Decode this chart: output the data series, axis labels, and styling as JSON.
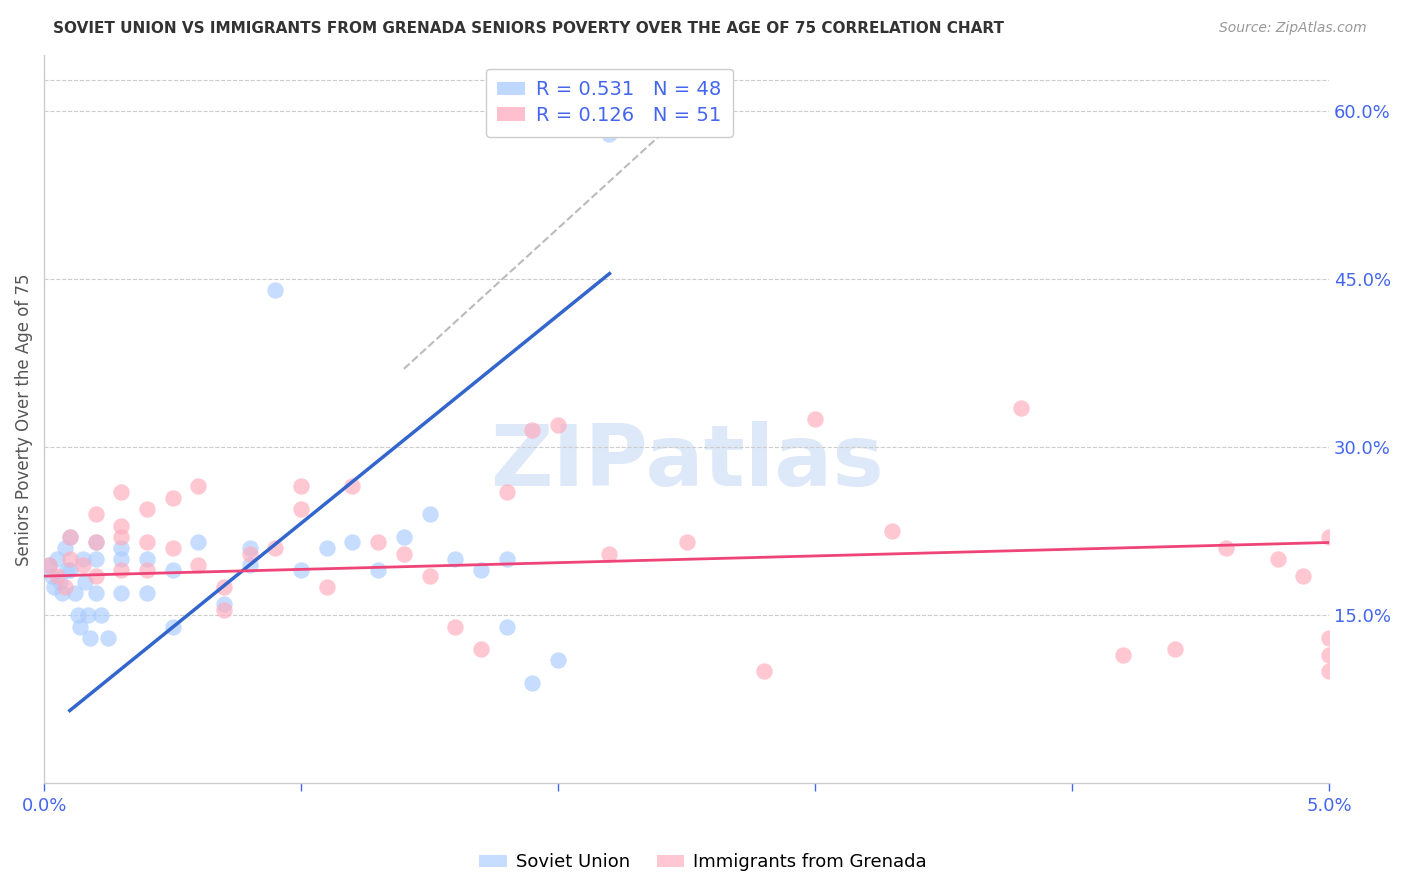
{
  "title": "SOVIET UNION VS IMMIGRANTS FROM GRENADA SENIORS POVERTY OVER THE AGE OF 75 CORRELATION CHART",
  "source": "Source: ZipAtlas.com",
  "ylabel": "Seniors Poverty Over the Age of 75",
  "legend_blue_R": "0.531",
  "legend_blue_N": "48",
  "legend_pink_R": "0.126",
  "legend_pink_N": "51",
  "legend_blue_label": "Soviet Union",
  "legend_pink_label": "Immigrants from Grenada",
  "right_ytick_labels": [
    "15.0%",
    "30.0%",
    "45.0%",
    "60.0%"
  ],
  "right_ytick_values": [
    0.15,
    0.3,
    0.45,
    0.6
  ],
  "blue_scatter_x": [
    0.0002,
    0.0003,
    0.0004,
    0.0005,
    0.0006,
    0.0007,
    0.0008,
    0.0009,
    0.001,
    0.001,
    0.0012,
    0.0013,
    0.0014,
    0.0015,
    0.0016,
    0.0017,
    0.0018,
    0.002,
    0.002,
    0.002,
    0.0022,
    0.0025,
    0.003,
    0.003,
    0.003,
    0.004,
    0.004,
    0.005,
    0.005,
    0.006,
    0.007,
    0.008,
    0.008,
    0.009,
    0.01,
    0.011,
    0.012,
    0.013,
    0.014,
    0.015,
    0.016,
    0.017,
    0.018,
    0.018,
    0.019,
    0.02,
    0.021,
    0.022
  ],
  "blue_scatter_y": [
    0.195,
    0.185,
    0.175,
    0.2,
    0.18,
    0.17,
    0.21,
    0.19,
    0.22,
    0.19,
    0.17,
    0.15,
    0.14,
    0.2,
    0.18,
    0.15,
    0.13,
    0.215,
    0.2,
    0.17,
    0.15,
    0.13,
    0.21,
    0.2,
    0.17,
    0.2,
    0.17,
    0.19,
    0.14,
    0.215,
    0.16,
    0.21,
    0.195,
    0.44,
    0.19,
    0.21,
    0.215,
    0.19,
    0.22,
    0.24,
    0.2,
    0.19,
    0.14,
    0.2,
    0.09,
    0.11,
    0.59,
    0.58
  ],
  "pink_scatter_x": [
    0.0002,
    0.0005,
    0.0008,
    0.001,
    0.001,
    0.0015,
    0.002,
    0.002,
    0.002,
    0.003,
    0.003,
    0.003,
    0.003,
    0.004,
    0.004,
    0.004,
    0.005,
    0.005,
    0.006,
    0.006,
    0.007,
    0.007,
    0.008,
    0.009,
    0.01,
    0.01,
    0.011,
    0.012,
    0.013,
    0.014,
    0.015,
    0.016,
    0.017,
    0.018,
    0.019,
    0.02,
    0.022,
    0.025,
    0.028,
    0.03,
    0.033,
    0.038,
    0.042,
    0.044,
    0.046,
    0.048,
    0.049,
    0.05,
    0.05,
    0.05,
    0.05
  ],
  "pink_scatter_y": [
    0.195,
    0.185,
    0.175,
    0.22,
    0.2,
    0.195,
    0.24,
    0.215,
    0.185,
    0.26,
    0.23,
    0.22,
    0.19,
    0.245,
    0.215,
    0.19,
    0.255,
    0.21,
    0.265,
    0.195,
    0.175,
    0.155,
    0.205,
    0.21,
    0.265,
    0.245,
    0.175,
    0.265,
    0.215,
    0.205,
    0.185,
    0.14,
    0.12,
    0.26,
    0.315,
    0.32,
    0.205,
    0.215,
    0.1,
    0.325,
    0.225,
    0.335,
    0.115,
    0.12,
    0.21,
    0.2,
    0.185,
    0.22,
    0.13,
    0.115,
    0.1
  ],
  "blue_line_x": [
    0.001,
    0.022
  ],
  "blue_line_y": [
    0.065,
    0.455
  ],
  "pink_line_x": [
    0.0,
    0.05
  ],
  "pink_line_y": [
    0.185,
    0.215
  ],
  "dashed_line_x": [
    0.014,
    0.025
  ],
  "dashed_line_y": [
    0.37,
    0.6
  ],
  "bg_color": "#ffffff",
  "blue_color": "#aaccff",
  "pink_color": "#ffaabb",
  "blue_line_color": "#3366cc",
  "pink_line_color": "#ee4477",
  "dashed_line_color": "#bbbbbb",
  "title_color": "#333333",
  "source_color": "#999999",
  "axis_color": "#4466ee",
  "grid_color": "#cccccc",
  "watermark": "ZIPatlas",
  "watermark_color": "#dde8f8",
  "xmin": 0.0,
  "xmax": 0.05,
  "ymin": 0.0,
  "ymax": 0.65
}
